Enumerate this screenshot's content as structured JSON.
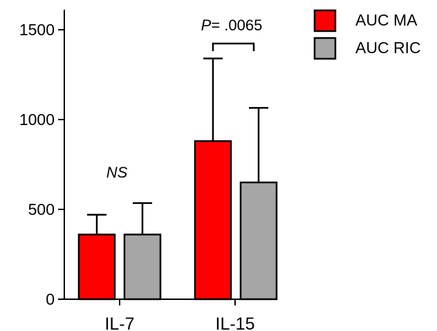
{
  "chart_data": {
    "type": "bar",
    "categories": [
      "IL-7",
      "IL-15"
    ],
    "series": [
      {
        "name": "AUC MA",
        "color": "#ff0000",
        "values": [
          360,
          880
        ],
        "error_upper": [
          470,
          1340
        ]
      },
      {
        "name": "AUC RIC",
        "color": "#a6a6a6",
        "values": [
          360,
          650
        ],
        "error_upper": [
          535,
          1065
        ]
      }
    ],
    "ylim": [
      0,
      1600
    ],
    "yticks": [
      0,
      500,
      1000,
      1500
    ],
    "ytick_labels": [
      "0",
      "500",
      "1000",
      "1500"
    ],
    "xlabel": "",
    "ylabel": "",
    "legend_position": "top-right",
    "grid": false,
    "annotations": [
      {
        "category": "IL-7",
        "text": "NS",
        "italic": true
      },
      {
        "category": "IL-15",
        "text_prefix": "P",
        "text_suffix": "= .0065",
        "bracket": true
      }
    ]
  }
}
